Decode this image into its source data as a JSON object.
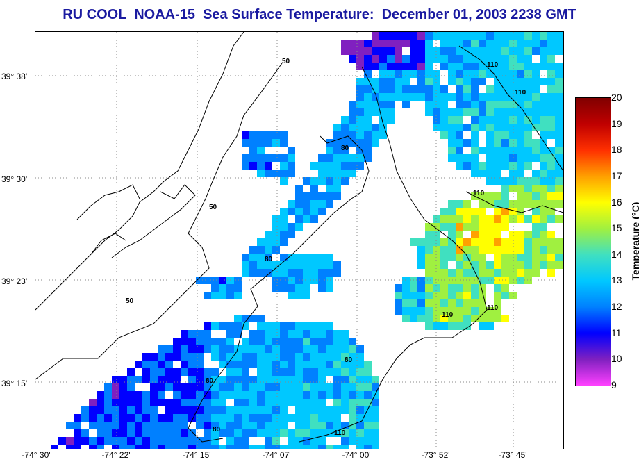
{
  "title": "RU COOL  NOAA-15  Sea Surface Temperature:  December 01, 2003 2238 GMT",
  "axes": {
    "latitude_labels": [
      "39° 38'",
      "39° 30'",
      "39° 23'",
      "39° 15'"
    ],
    "longitude_labels": [
      "-74° 30'",
      "-74° 22'",
      "-74° 15'",
      "-74° 07'",
      "-74° 00'",
      "-73° 52'",
      "-73° 45'"
    ]
  },
  "colorbar": {
    "title": "Temperature (°C)",
    "min": 9,
    "max": 20,
    "ticks": [
      "20",
      "19",
      "18",
      "17",
      "16",
      "15",
      "14",
      "13",
      "12",
      "11",
      "10",
      "9"
    ],
    "colors": [
      "#ff40ff",
      "#8020c0",
      "#0000ff",
      "#0080ff",
      "#00c8ff",
      "#40e0c0",
      "#a0f040",
      "#ffff00",
      "#ffa000",
      "#ff3000",
      "#c00000",
      "#800000"
    ]
  },
  "contour_labels": [
    "50",
    "50",
    "50",
    "80",
    "80",
    "80",
    "80",
    "80",
    "110",
    "110",
    "110",
    "110",
    "110",
    "110"
  ],
  "map_features": {
    "coastline_icon": "coastline-shape",
    "graticule": true
  }
}
